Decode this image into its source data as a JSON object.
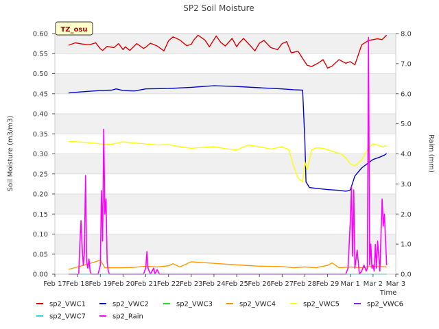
{
  "chart_data": {
    "type": "line",
    "title": "SP2 Soil Moisture",
    "site_badge": "TZ_osu",
    "xlabel": "Time",
    "ylabel": "Soil Moisture (m3/m3)",
    "y2label": "Raim (mm)",
    "xlim": [
      0,
      15
    ],
    "ylim": [
      0,
      0.6
    ],
    "y2lim": [
      0,
      8
    ],
    "x_ticks": [
      {
        "x": 0,
        "label": "Feb 17"
      },
      {
        "x": 1,
        "label": "Feb 18"
      },
      {
        "x": 2,
        "label": "Feb 19"
      },
      {
        "x": 3,
        "label": "Feb 20"
      },
      {
        "x": 4,
        "label": "Feb 21"
      },
      {
        "x": 5,
        "label": "Feb 22"
      },
      {
        "x": 6,
        "label": "Feb 23"
      },
      {
        "x": 7,
        "label": "Feb 24"
      },
      {
        "x": 8,
        "label": "Feb 25"
      },
      {
        "x": 9,
        "label": "Feb 26"
      },
      {
        "x": 10,
        "label": "Feb 27"
      },
      {
        "x": 11,
        "label": "Feb 28"
      },
      {
        "x": 12,
        "label": "Feb 29"
      },
      {
        "x": 13,
        "label": "Mar 1"
      },
      {
        "x": 14,
        "label": "Mar 2"
      },
      {
        "x": 15,
        "label": "Mar 3"
      }
    ],
    "y_ticks": [
      "0.00",
      "0.05",
      "0.10",
      "0.15",
      "0.20",
      "0.25",
      "0.30",
      "0.35",
      "0.40",
      "0.45",
      "0.50",
      "0.55",
      "0.60"
    ],
    "y2_ticks": [
      "0.0",
      "1.0",
      "2.0",
      "3.0",
      "4.0",
      "5.0",
      "6.0",
      "7.0",
      "8.0"
    ],
    "series": [
      {
        "name": "sp2_VWC1",
        "color": "#dd0000",
        "axis": "left",
        "x": [
          0.6,
          0.9,
          1.2,
          1.5,
          1.8,
          2.0,
          2.1,
          2.3,
          2.6,
          2.8,
          3.0,
          3.1,
          3.3,
          3.6,
          3.9,
          4.0,
          4.2,
          4.5,
          4.8,
          5.0,
          5.2,
          5.5,
          5.8,
          6.0,
          6.1,
          6.3,
          6.6,
          6.8,
          7.1,
          7.3,
          7.5,
          7.8,
          8.0,
          8.1,
          8.3,
          8.6,
          8.8,
          9.0,
          9.2,
          9.5,
          9.8,
          10.0,
          10.2,
          10.4,
          10.7,
          10.9,
          11.1,
          11.3,
          11.6,
          11.8,
          12.0,
          12.2,
          12.5,
          12.8,
          13.0,
          13.2,
          13.5,
          13.8,
          14.0,
          14.2,
          14.4,
          14.6
        ],
        "values": [
          0.571,
          0.577,
          0.574,
          0.572,
          0.577,
          0.562,
          0.558,
          0.568,
          0.565,
          0.575,
          0.56,
          0.567,
          0.558,
          0.575,
          0.563,
          0.566,
          0.576,
          0.569,
          0.557,
          0.582,
          0.592,
          0.584,
          0.57,
          0.573,
          0.583,
          0.596,
          0.584,
          0.567,
          0.594,
          0.578,
          0.569,
          0.588,
          0.567,
          0.576,
          0.588,
          0.57,
          0.557,
          0.576,
          0.583,
          0.565,
          0.56,
          0.575,
          0.58,
          0.552,
          0.556,
          0.538,
          0.521,
          0.518,
          0.527,
          0.535,
          0.514,
          0.519,
          0.535,
          0.526,
          0.53,
          0.522,
          0.572,
          0.583,
          0.585,
          0.587,
          0.585,
          0.596
        ]
      },
      {
        "name": "sp2_VWC2",
        "color": "#0000cc",
        "axis": "left",
        "x": [
          0.6,
          1.0,
          1.5,
          2.0,
          2.5,
          2.7,
          3.0,
          3.5,
          4.0,
          5.0,
          6.0,
          7.0,
          8.0,
          9.0,
          10.0,
          10.5,
          10.9,
          11.0,
          11.05,
          11.2,
          11.5,
          12.0,
          12.5,
          12.8,
          12.9,
          13.0,
          13.2,
          13.5,
          13.8,
          14.0,
          14.3,
          14.5,
          14.6
        ],
        "values": [
          0.452,
          0.454,
          0.456,
          0.458,
          0.459,
          0.462,
          0.458,
          0.457,
          0.462,
          0.463,
          0.466,
          0.47,
          0.468,
          0.465,
          0.462,
          0.46,
          0.459,
          0.33,
          0.23,
          0.216,
          0.214,
          0.211,
          0.209,
          0.207,
          0.208,
          0.21,
          0.245,
          0.265,
          0.278,
          0.286,
          0.292,
          0.297,
          0.301
        ]
      },
      {
        "name": "sp2_VWC3",
        "color": "#22dd22",
        "axis": "left",
        "x": [],
        "values": []
      },
      {
        "name": "sp2_VWC4",
        "color": "#ff9900",
        "axis": "left",
        "x": [
          0.6,
          1.0,
          1.5,
          2.0,
          2.2,
          2.5,
          3.0,
          3.5,
          4.0,
          4.5,
          5.0,
          5.2,
          5.5,
          6.0,
          7.0,
          8.0,
          9.0,
          10.0,
          10.5,
          11.0,
          11.5,
          12.0,
          12.2,
          12.5,
          13.0,
          13.5,
          14.0,
          14.6
        ],
        "values": [
          0.012,
          0.018,
          0.026,
          0.035,
          0.016,
          0.016,
          0.016,
          0.017,
          0.02,
          0.018,
          0.021,
          0.026,
          0.018,
          0.031,
          0.027,
          0.023,
          0.02,
          0.019,
          0.016,
          0.018,
          0.016,
          0.022,
          0.028,
          0.016,
          0.018,
          0.016,
          0.02,
          0.018
        ]
      },
      {
        "name": "sp2_VWC5",
        "color": "#ffff00",
        "axis": "left",
        "x": [
          0.6,
          1.0,
          1.5,
          2.0,
          2.5,
          3.0,
          3.5,
          4.0,
          4.5,
          5.0,
          5.5,
          6.0,
          6.5,
          7.0,
          7.5,
          8.0,
          8.5,
          9.0,
          9.5,
          10.0,
          10.3,
          10.5,
          10.7,
          10.9,
          11.0,
          11.1,
          11.3,
          11.5,
          11.8,
          12.0,
          12.3,
          12.6,
          12.8,
          13.0,
          13.2,
          13.5,
          13.8,
          14.0,
          14.2,
          14.4,
          14.6
        ],
        "values": [
          0.331,
          0.33,
          0.328,
          0.325,
          0.324,
          0.33,
          0.327,
          0.325,
          0.322,
          0.323,
          0.318,
          0.314,
          0.316,
          0.318,
          0.313,
          0.31,
          0.322,
          0.318,
          0.312,
          0.318,
          0.31,
          0.27,
          0.24,
          0.23,
          0.28,
          0.26,
          0.31,
          0.315,
          0.314,
          0.31,
          0.305,
          0.3,
          0.29,
          0.275,
          0.27,
          0.285,
          0.315,
          0.325,
          0.322,
          0.318,
          0.32
        ]
      },
      {
        "name": "sp2_VWC6",
        "color": "#8822dd",
        "axis": "left",
        "x": [],
        "values": []
      },
      {
        "name": "sp2_VWC7",
        "color": "#22dddd",
        "axis": "left",
        "x": [
          0.6,
          14.6
        ],
        "values": [
          0.0,
          0.0
        ]
      },
      {
        "name": "sp2_Rain",
        "color": "#ff00ff",
        "axis": "right",
        "x": [
          0.6,
          1.05,
          1.1,
          1.15,
          1.2,
          1.25,
          1.3,
          1.35,
          1.4,
          1.45,
          1.5,
          1.55,
          1.6,
          1.65,
          1.7,
          1.9,
          2.0,
          2.05,
          2.1,
          2.15,
          2.2,
          2.25,
          2.3,
          2.35,
          2.4,
          3.9,
          4.0,
          4.05,
          4.1,
          4.2,
          4.35,
          4.4,
          4.5,
          4.6,
          12.8,
          12.9,
          13.0,
          13.05,
          13.1,
          13.15,
          13.2,
          13.3,
          13.4,
          13.5,
          13.6,
          13.7,
          13.75,
          13.8,
          13.85,
          13.9,
          13.95,
          14.0,
          14.05,
          14.1,
          14.15,
          14.2,
          14.3,
          14.4,
          14.45,
          14.5,
          14.6
        ],
        "values": [
          0,
          0,
          1.0,
          1.78,
          0.9,
          0.3,
          0.72,
          3.28,
          0.4,
          0.2,
          0.5,
          0.1,
          0,
          0,
          0,
          0,
          0.3,
          2.78,
          1.1,
          4.82,
          2.0,
          2.5,
          0.4,
          0.1,
          0,
          0,
          0.2,
          0.75,
          0.2,
          0,
          0.2,
          0,
          0.15,
          0,
          0,
          0.2,
          1.78,
          2.9,
          0.6,
          2.8,
          0.2,
          0.8,
          0,
          0.1,
          0.3,
          0.1,
          0.2,
          7.87,
          0.3,
          1.0,
          0.2,
          0.3,
          0.1,
          0.99,
          0.2,
          1.1,
          0.1,
          2.5,
          1.6,
          2.0,
          0.3
        ]
      }
    ]
  }
}
